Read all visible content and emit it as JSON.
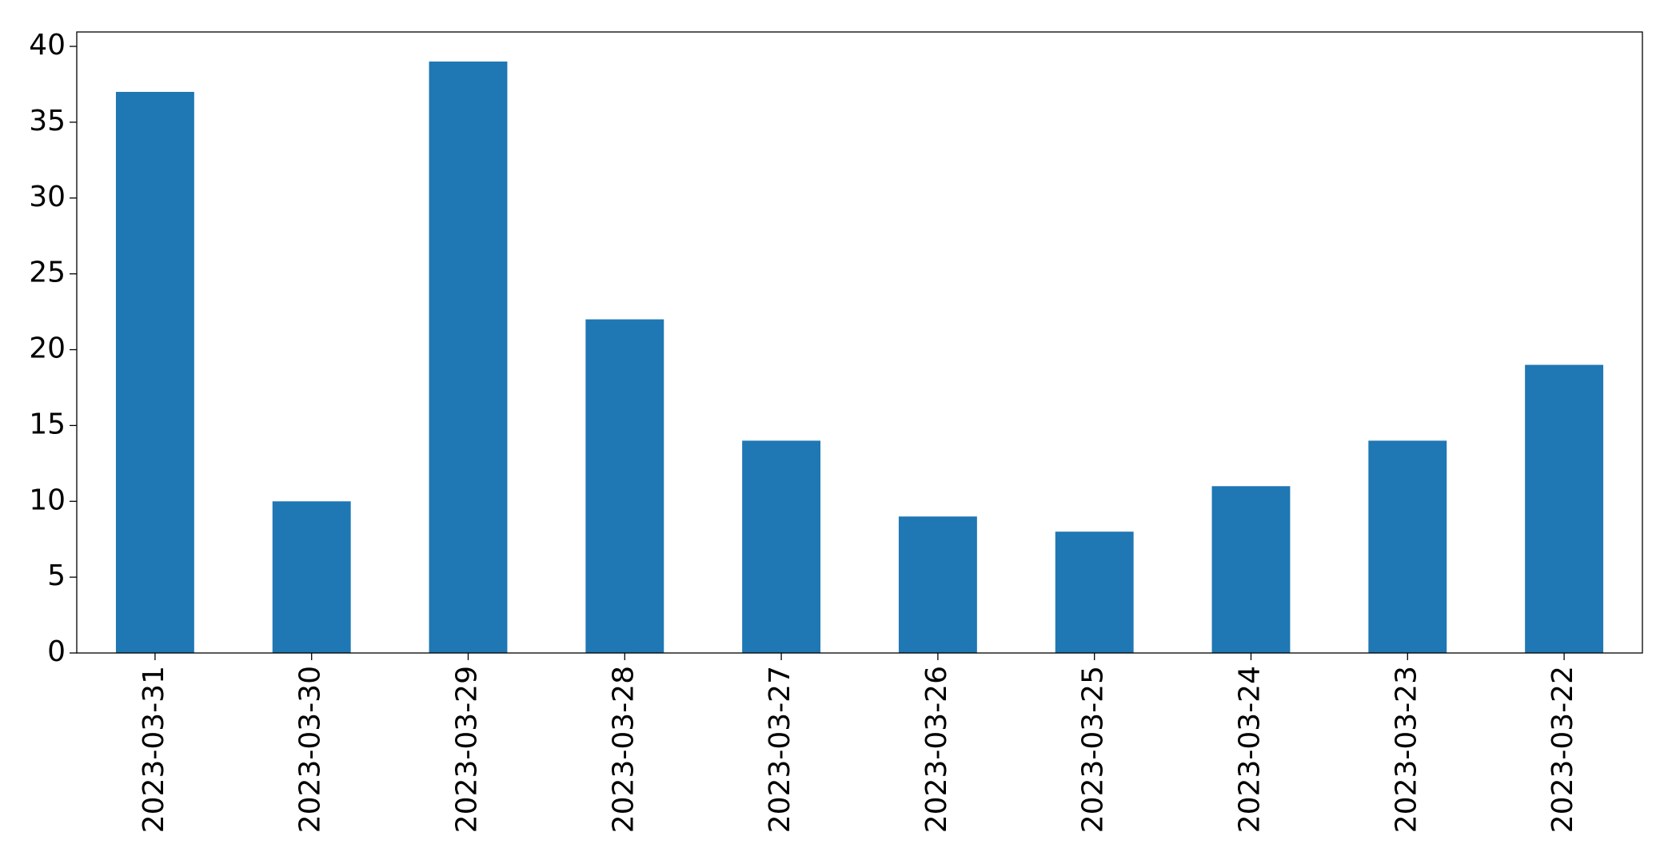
{
  "chart_data": {
    "type": "bar",
    "categories": [
      "2023-03-31",
      "2023-03-30",
      "2023-03-29",
      "2023-03-28",
      "2023-03-27",
      "2023-03-26",
      "2023-03-25",
      "2023-03-24",
      "2023-03-23",
      "2023-03-22"
    ],
    "values": [
      37,
      10,
      39,
      22,
      14,
      9,
      8,
      11,
      14,
      19
    ],
    "color": "#1f77b4",
    "ylim": [
      0,
      40.95
    ],
    "yticks": [
      0,
      5,
      10,
      15,
      20,
      25,
      30,
      35,
      40
    ],
    "grid": false
  }
}
